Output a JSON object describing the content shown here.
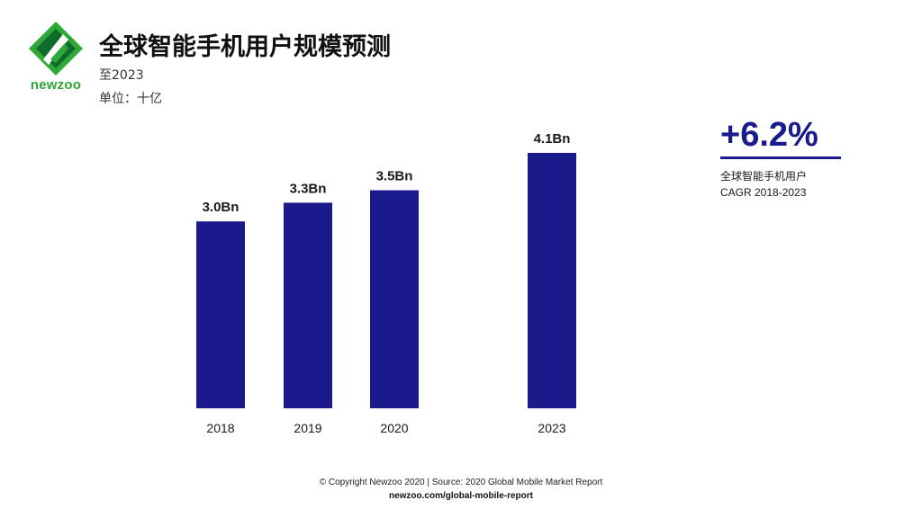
{
  "brand": {
    "name": "newzoo",
    "logo_color": "#2ea836",
    "logo_dark": "#0e6b2a"
  },
  "header": {
    "title": "全球智能手机用户规模预测",
    "subtitle": "至2023",
    "unit": "单位：十亿"
  },
  "highlight": {
    "value": "+6.2%",
    "line1": "全球智能手机用户",
    "line2": "CAGR 2018-2023",
    "color": "#1a1a8c"
  },
  "chart_data": {
    "type": "bar",
    "categories": [
      "2018",
      "2019",
      "2020",
      "2023"
    ],
    "values": [
      3.0,
      3.3,
      3.5,
      4.1
    ],
    "data_labels": [
      "3.0Bn",
      "3.3Bn",
      "3.5Bn",
      "4.1Bn"
    ],
    "title": "全球智能手机用户规模预测",
    "xlabel": "",
    "ylabel": "",
    "ylim": [
      0,
      4.1
    ],
    "grid": false,
    "bar_color": "#1a1a8c"
  },
  "footer": {
    "copyright": "© Copyright Newzoo 2020 | Source: 2020 Global Mobile Market Report",
    "url": "newzoo.com/global-mobile-report"
  }
}
